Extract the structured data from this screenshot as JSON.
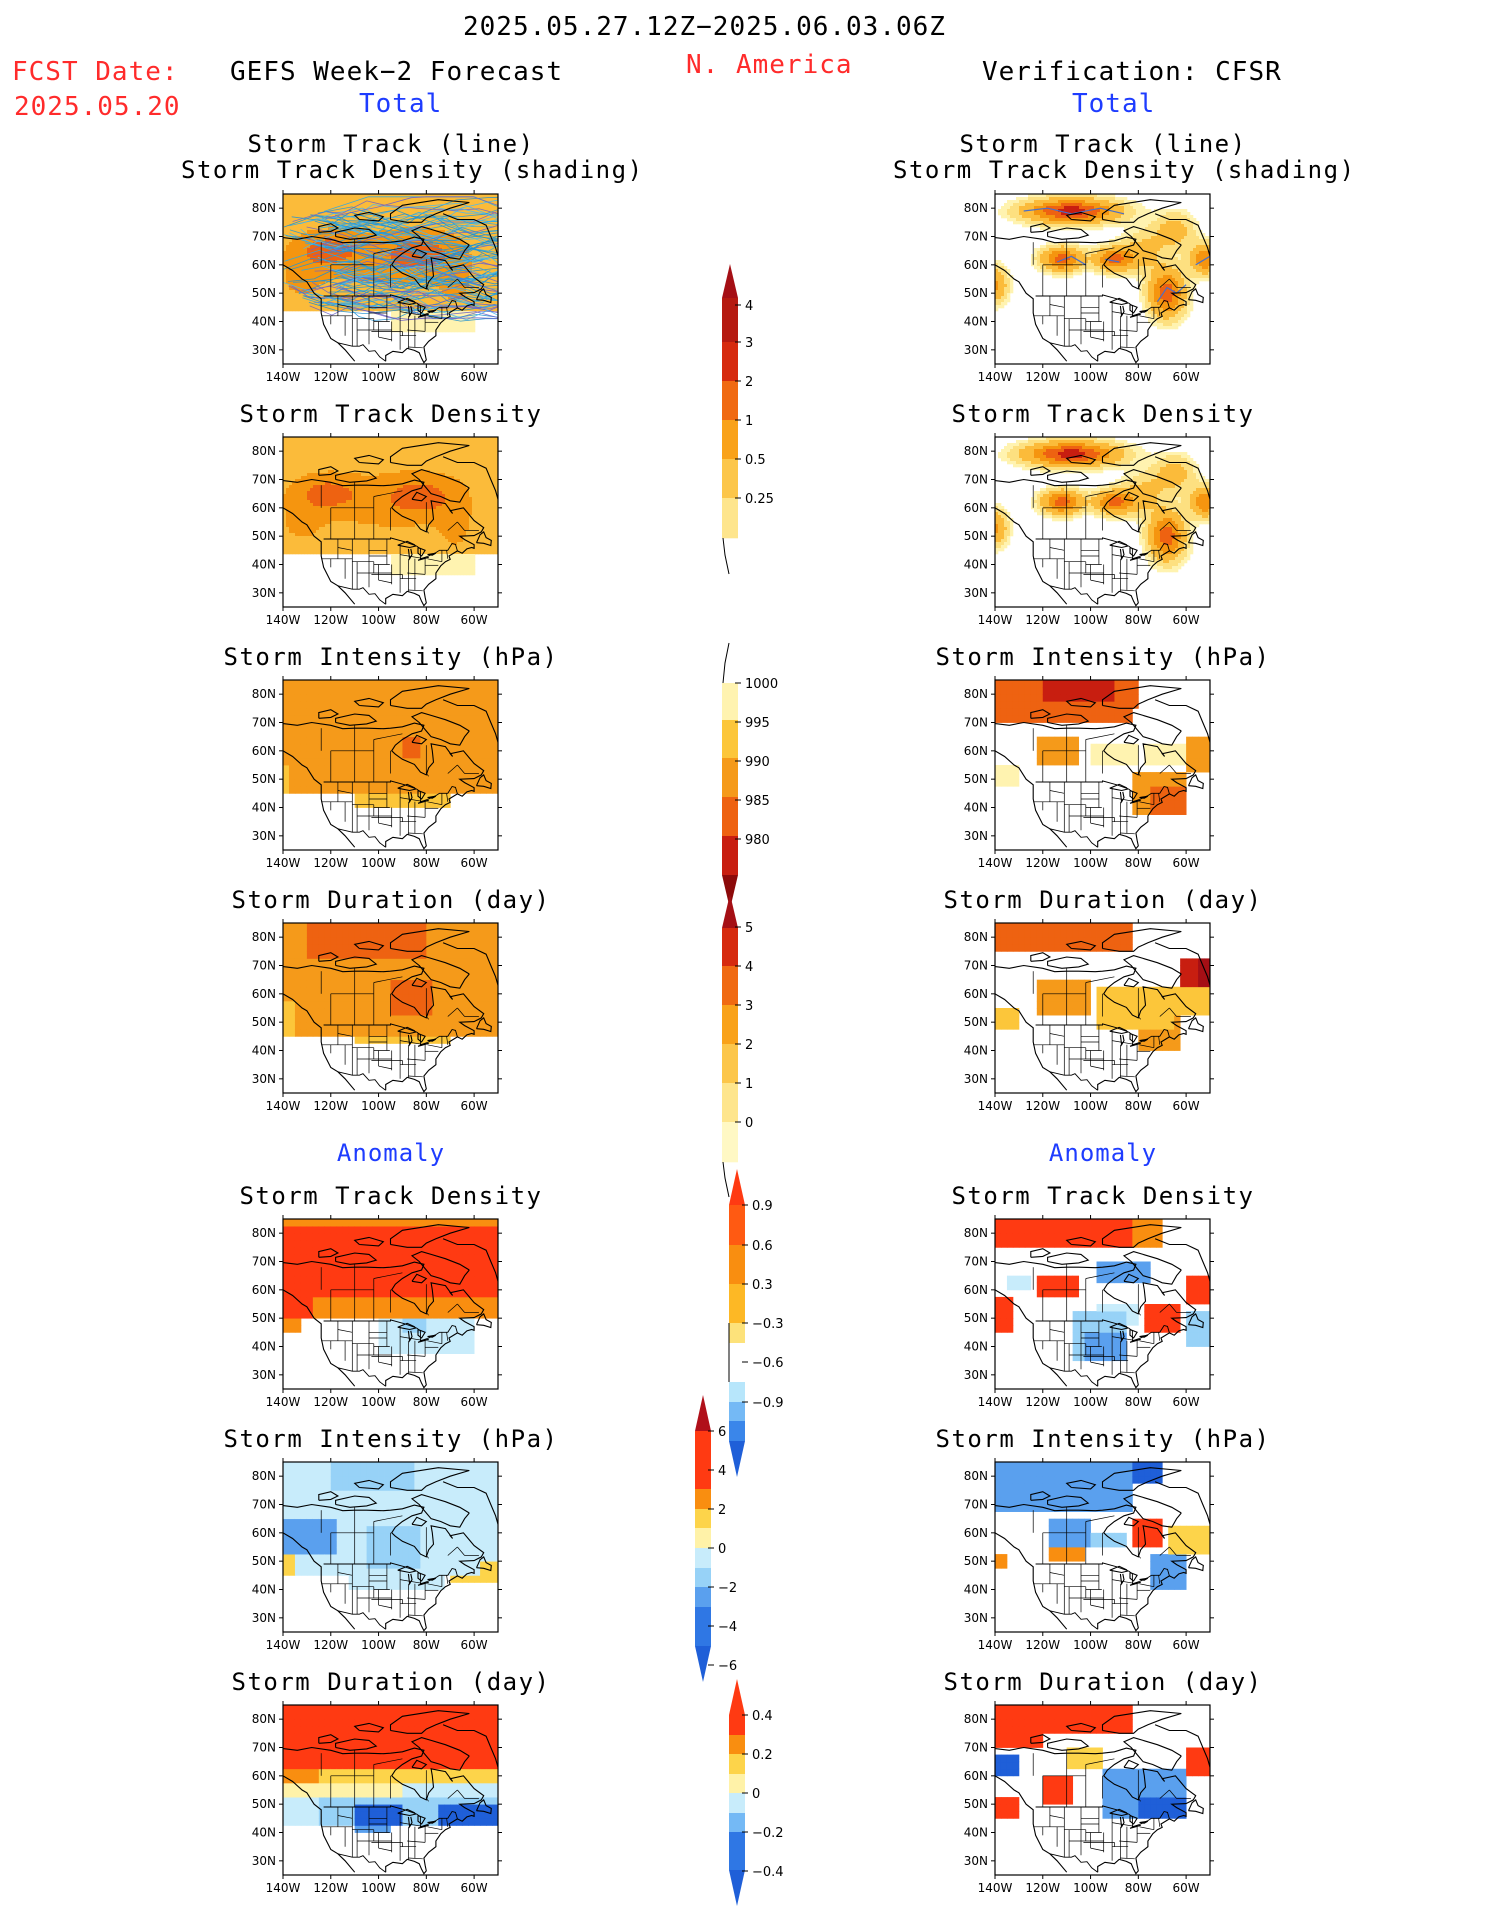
{
  "header": {
    "date_range": "2025.05.27.12Z−2025.06.03.06Z",
    "fcst_label": "FCST Date:",
    "fcst_date": "2025.05.20",
    "left_title": "GEFS Week−2 Forecast",
    "region": "N. America",
    "right_title": "Verification: CFSR",
    "left_total": "Total",
    "right_total": "Total",
    "left_anomaly": "Anomaly",
    "right_anomaly": "Anomaly"
  },
  "panels": {
    "track_line_1": "Storm Track (line)",
    "track_line_2": "Storm Track Density (shading)",
    "density": "Storm Track Density",
    "intensity": "Storm Intensity (hPa)",
    "duration": "Storm Duration (day)"
  },
  "axes": {
    "lat_ticks": [
      "80N",
      "70N",
      "60N",
      "50N",
      "40N",
      "30N"
    ],
    "lon_ticks": [
      "140W",
      "120W",
      "100W",
      "80W",
      "60W"
    ]
  },
  "colorbars": {
    "density": {
      "labels": [
        "4",
        "3",
        "2",
        "1",
        "0.5",
        "0.25"
      ],
      "colors": [
        "#a50f15",
        "#d62a0e",
        "#f05a10",
        "#f9a01a",
        "#fcc63a",
        "#fee58c",
        "#fff8c4"
      ]
    },
    "intensity": {
      "labels": [
        "1000",
        "995",
        "990",
        "985",
        "980"
      ],
      "colors": [
        "#fff8c4",
        "#fcc63a",
        "#f59a1a",
        "#f05a10",
        "#c81e10",
        "#8c0a0a"
      ]
    },
    "duration": {
      "labels": [
        "5",
        "4",
        "3",
        "2",
        "1",
        "0"
      ],
      "colors": [
        "#a50f15",
        "#d62a0e",
        "#f05a10",
        "#f9a01a",
        "#fcc63a",
        "#fee58c",
        "#fff8c4"
      ]
    },
    "anom_density": {
      "labels": [
        "0.9",
        "0.6",
        "0.3",
        "−0.3",
        "−0.6",
        "−0.9"
      ],
      "colors": [
        "#ff3a12",
        "#f98e10",
        "#fdb825",
        "#fde27a",
        "#ffffff",
        "#b7e6fb",
        "#74b9f5",
        "#3a86ea",
        "#1f5fd8"
      ]
    },
    "anom_intensity": {
      "labels": [
        "6",
        "4",
        "2",
        "0",
        "−2",
        "−4",
        "−6"
      ],
      "colors": [
        "#b0101a",
        "#ff3a12",
        "#f98e10",
        "#fdd44a",
        "#fff2a8",
        "#c8ecfb",
        "#97d2f7",
        "#5aa0ee",
        "#2f77e4",
        "#1f5fd8"
      ]
    },
    "anom_duration": {
      "labels": [
        "0.4",
        "0.2",
        "0",
        "−0.2",
        "−0.4"
      ],
      "colors": [
        "#ff3a12",
        "#f98e10",
        "#fdd44a",
        "#fff2a8",
        "#c8ecfb",
        "#74b9f5",
        "#2f77e4",
        "#1f5fd8"
      ]
    }
  },
  "colors": {
    "title_red": "#ff2b2b",
    "title_blue": "#1e3cff",
    "track_lines": "#2aa8e8"
  }
}
